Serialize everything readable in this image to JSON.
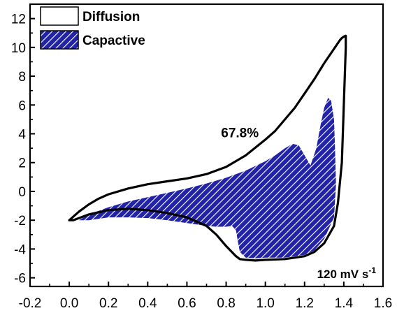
{
  "chart_data": {
    "type": "line",
    "title": "",
    "xlabel": "",
    "ylabel": "",
    "xlim": [
      -0.2,
      1.6
    ],
    "ylim": [
      -6.6,
      13.0
    ],
    "xticks": [
      -0.2,
      0.0,
      0.2,
      0.4,
      0.6,
      0.8,
      1.0,
      1.2,
      1.4,
      1.6
    ],
    "xtick_labels": [
      "-0.2",
      "0.0",
      "0.2",
      "0.4",
      "0.6",
      "0.8",
      "1.0",
      "1.2",
      "1.4",
      "1.6"
    ],
    "yticks": [
      -6,
      -4,
      -2,
      0,
      2,
      4,
      6,
      8,
      10,
      12
    ],
    "ytick_labels": [
      "-6",
      "-4",
      "-2",
      "0",
      "2",
      "4",
      "6",
      "8",
      "10",
      "12"
    ],
    "grid": false,
    "legend": {
      "position": "top-left",
      "entries": [
        {
          "label": "Diffusion",
          "style": "outline"
        },
        {
          "label": "Capactive",
          "style": "hatched",
          "color": "#2323a8"
        }
      ]
    },
    "annotations": [
      {
        "text": "67.8%",
        "x": 0.87,
        "y": 4.1
      },
      {
        "text": "120 mV s",
        "superscript": "-1",
        "position": "bottom-right"
      }
    ],
    "series": [
      {
        "name": "Diffusion",
        "style": "outline",
        "color": "#000000",
        "x": [
          0.0,
          0.05,
          0.1,
          0.15,
          0.2,
          0.3,
          0.4,
          0.5,
          0.6,
          0.7,
          0.8,
          0.9,
          1.0,
          1.05,
          1.1,
          1.15,
          1.2,
          1.25,
          1.3,
          1.35,
          1.38,
          1.39,
          1.395,
          1.4,
          1.41,
          1.41,
          1.4,
          1.39,
          1.37,
          1.35,
          1.3,
          1.25,
          1.2,
          1.1,
          1.0,
          0.95,
          0.9,
          0.87,
          0.85,
          0.8,
          0.75,
          0.7,
          0.6,
          0.5,
          0.4,
          0.3,
          0.2,
          0.1,
          0.05,
          0.02,
          0.0
        ],
        "y": [
          -2.0,
          -1.4,
          -0.9,
          -0.5,
          -0.2,
          0.2,
          0.5,
          0.7,
          0.9,
          1.2,
          1.7,
          2.5,
          3.6,
          4.2,
          5.0,
          5.8,
          6.8,
          7.8,
          8.9,
          9.9,
          10.5,
          10.65,
          10.7,
          10.75,
          10.8,
          10.0,
          6.0,
          2.0,
          -0.8,
          -2.4,
          -3.6,
          -4.2,
          -4.5,
          -4.7,
          -4.75,
          -4.8,
          -4.75,
          -4.7,
          -4.5,
          -3.8,
          -3.0,
          -2.4,
          -1.8,
          -1.5,
          -1.3,
          -1.2,
          -1.3,
          -1.6,
          -1.85,
          -2.0,
          -2.0
        ]
      },
      {
        "name": "Capactive",
        "style": "hatched",
        "color": "#2323a8",
        "x": [
          0.05,
          0.1,
          0.2,
          0.3,
          0.4,
          0.5,
          0.6,
          0.7,
          0.8,
          0.9,
          1.0,
          1.05,
          1.1,
          1.14,
          1.17,
          1.2,
          1.23,
          1.26,
          1.28,
          1.3,
          1.32,
          1.335,
          1.35,
          1.355,
          1.36,
          1.35,
          1.3,
          1.25,
          1.2,
          1.1,
          1.0,
          0.95,
          0.9,
          0.87,
          0.86,
          0.85,
          0.83,
          0.8,
          0.75,
          0.7,
          0.6,
          0.5,
          0.4,
          0.3,
          0.2,
          0.1
        ],
        "y": [
          -2.0,
          -1.6,
          -1.1,
          -0.7,
          -0.4,
          -0.1,
          0.2,
          0.55,
          0.95,
          1.45,
          2.1,
          2.5,
          3.0,
          3.3,
          3.2,
          2.5,
          1.8,
          3.0,
          4.5,
          5.8,
          6.5,
          6.3,
          5.0,
          3.0,
          0.5,
          -1.8,
          -3.3,
          -4.1,
          -4.4,
          -4.6,
          -4.6,
          -4.65,
          -4.6,
          -4.2,
          -3.5,
          -2.7,
          -2.4,
          -2.45,
          -2.45,
          -2.4,
          -2.2,
          -2.0,
          -1.85,
          -1.8,
          -1.8,
          -2.0
        ]
      }
    ]
  }
}
